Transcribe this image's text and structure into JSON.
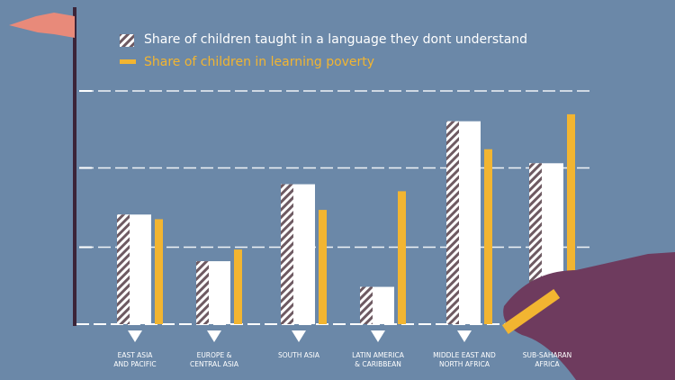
{
  "chart_data": {
    "type": "bar",
    "categories": [
      "EAST ASIA\nAND PACIFIC",
      "EUROPE &\nCENTRAL ASIA",
      "SOUTH ASIA",
      "LATIN AMERICA\n& CARIBBEAN",
      "MIDDLE EAST AND\nNORTH AFRICA",
      "SUB-SAHARAN\nAFRICA"
    ],
    "series": [
      {
        "name": "Share of children taught in a language they dont understand",
        "color": "#ffffff",
        "values": [
          47,
          27,
          60,
          16,
          87,
          69
        ]
      },
      {
        "name": "Share of children in learning poverty",
        "color": "#f2b531",
        "values": [
          45,
          32,
          49,
          57,
          75,
          90
        ]
      }
    ],
    "ylim": [
      0,
      100
    ],
    "gridlines": [
      33,
      67,
      100
    ]
  }
}
